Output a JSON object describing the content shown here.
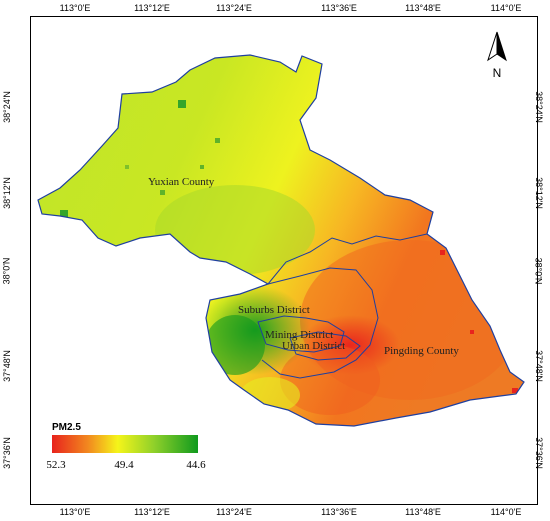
{
  "map": {
    "lon_ticks": [
      "113°0'E",
      "113°12'E",
      "113°24'E",
      "113°36'E",
      "113°48'E",
      "114°0'E"
    ],
    "lat_ticks": [
      "38°24'N",
      "38°12'N",
      "38°0'N",
      "37°48'N",
      "37°36'N"
    ],
    "places": {
      "yuxian": "Yuxian County",
      "suburbs": "Suburbs District",
      "mining": "Mining District",
      "urban": "Urban District",
      "pingding": "Pingding County"
    },
    "north_label": "N",
    "legend": {
      "title": "PM2.5",
      "values": [
        "52.3",
        "49.4",
        "44.6"
      ],
      "colors": [
        "#e8231d",
        "#f5f51a",
        "#109a1e"
      ]
    },
    "colors": {
      "frame": "#000000",
      "boundary": "#1f3f9f",
      "high": "#e63b1b",
      "mid": "#e9f01e",
      "low": "#20a02a"
    }
  }
}
